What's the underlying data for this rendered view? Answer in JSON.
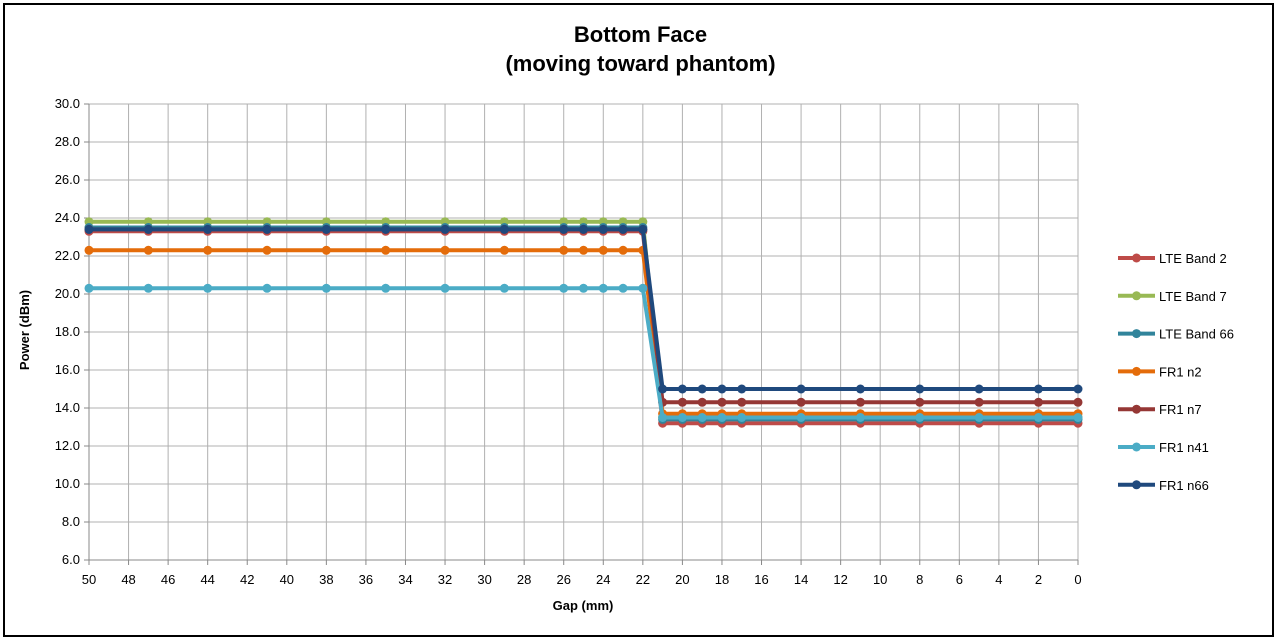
{
  "chart_data": {
    "type": "line",
    "title": "Bottom Face",
    "subtitle": "(moving toward phantom)",
    "xlabel": "Gap (mm)",
    "ylabel": "Power (dBm)",
    "ylim": [
      6.0,
      30.0
    ],
    "yticks": [
      "6.0",
      "8.0",
      "10.0",
      "12.0",
      "14.0",
      "16.0",
      "18.0",
      "20.0",
      "22.0",
      "24.0",
      "26.0",
      "28.0",
      "30.0"
    ],
    "xlim": [
      50,
      0
    ],
    "x_reversed": true,
    "xticks": [
      "50",
      "48",
      "46",
      "44",
      "42",
      "40",
      "38",
      "36",
      "34",
      "32",
      "30",
      "28",
      "26",
      "24",
      "22",
      "20",
      "18",
      "16",
      "14",
      "12",
      "10",
      "8",
      "6",
      "4",
      "2",
      "0"
    ],
    "grid": true,
    "legend_position": "right",
    "x": [
      50,
      47,
      44,
      41,
      38,
      35,
      32,
      29,
      26,
      25,
      24,
      23,
      22,
      21,
      20,
      19,
      18,
      17,
      14,
      11,
      8,
      5,
      2,
      0
    ],
    "series": [
      {
        "name": "LTE Band 2",
        "color": "#BE4B48",
        "values": [
          23.3,
          23.3,
          23.3,
          23.3,
          23.3,
          23.3,
          23.3,
          23.3,
          23.3,
          23.3,
          23.3,
          23.3,
          23.3,
          13.2,
          13.2,
          13.2,
          13.2,
          13.2,
          13.2,
          13.2,
          13.2,
          13.2,
          13.2,
          13.2
        ]
      },
      {
        "name": "LTE Band 7",
        "color": "#98B954",
        "values": [
          23.8,
          23.8,
          23.8,
          23.8,
          23.8,
          23.8,
          23.8,
          23.8,
          23.8,
          23.8,
          23.8,
          23.8,
          23.8,
          13.5,
          13.5,
          13.5,
          13.5,
          13.5,
          13.5,
          13.5,
          13.5,
          13.5,
          13.5,
          13.5
        ]
      },
      {
        "name": "LTE Band 66",
        "color": "#31849B",
        "values": [
          23.5,
          23.5,
          23.5,
          23.5,
          23.5,
          23.5,
          23.5,
          23.5,
          23.5,
          23.5,
          23.5,
          23.5,
          23.5,
          13.4,
          13.4,
          13.4,
          13.4,
          13.4,
          13.4,
          13.4,
          13.4,
          13.4,
          13.4,
          13.4
        ]
      },
      {
        "name": "FR1 n2",
        "color": "#E46C0A",
        "values": [
          22.3,
          22.3,
          22.3,
          22.3,
          22.3,
          22.3,
          22.3,
          22.3,
          22.3,
          22.3,
          22.3,
          22.3,
          22.3,
          13.7,
          13.7,
          13.7,
          13.7,
          13.7,
          13.7,
          13.7,
          13.7,
          13.7,
          13.7,
          13.7
        ]
      },
      {
        "name": "FR1 n7",
        "color": "#953735",
        "values": [
          23.4,
          23.4,
          23.4,
          23.4,
          23.4,
          23.4,
          23.4,
          23.4,
          23.4,
          23.4,
          23.4,
          23.4,
          23.4,
          14.3,
          14.3,
          14.3,
          14.3,
          14.3,
          14.3,
          14.3,
          14.3,
          14.3,
          14.3,
          14.3
        ]
      },
      {
        "name": "FR1 n41",
        "color": "#4BACC6",
        "values": [
          20.3,
          20.3,
          20.3,
          20.3,
          20.3,
          20.3,
          20.3,
          20.3,
          20.3,
          20.3,
          20.3,
          20.3,
          20.3,
          13.5,
          13.5,
          13.5,
          13.5,
          13.5,
          13.5,
          13.5,
          13.5,
          13.5,
          13.5,
          13.5
        ]
      },
      {
        "name": "FR1 n66",
        "color": "#1F497D",
        "values": [
          23.4,
          23.4,
          23.4,
          23.4,
          23.4,
          23.4,
          23.4,
          23.4,
          23.4,
          23.4,
          23.4,
          23.4,
          23.4,
          15.0,
          15.0,
          15.0,
          15.0,
          15.0,
          15.0,
          15.0,
          15.0,
          15.0,
          15.0,
          15.0
        ]
      }
    ]
  }
}
